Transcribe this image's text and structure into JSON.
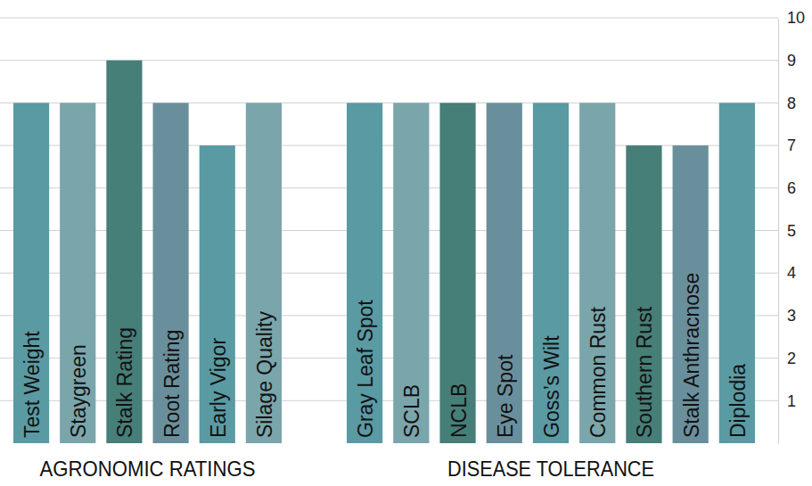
{
  "chart_data": {
    "type": "bar",
    "ylim": [
      0,
      10
    ],
    "yticks": [
      1,
      2,
      3,
      4,
      5,
      6,
      7,
      8,
      9,
      10
    ],
    "grid": true,
    "groups": [
      {
        "name": "AGRONOMIC RATINGS",
        "categories": [
          "Test Weight",
          "Staygreen",
          "Stalk Rating",
          "Root Rating",
          "Early Vigor",
          "Silage Quality"
        ],
        "values": [
          8,
          8,
          9,
          8,
          7,
          8
        ],
        "colors": [
          "#5a9aa3",
          "#7aa5ab",
          "#467e78",
          "#6a8f9c",
          "#5a9aa3",
          "#7aa5ab"
        ]
      },
      {
        "name": "DISEASE TOLERANCE",
        "categories": [
          "Gray Leaf Spot",
          "SCLB",
          "NCLB",
          "Eye Spot",
          "Goss’s Wilt",
          "Common Rust",
          "Southern Rust",
          "Stalk Anthracnose",
          "Diplodia"
        ],
        "values": [
          8,
          8,
          8,
          8,
          8,
          8,
          7,
          7,
          8
        ],
        "colors": [
          "#5a9aa3",
          "#7aa5ab",
          "#467e78",
          "#6a8f9c",
          "#5a9aa3",
          "#7aa5ab",
          "#467e78",
          "#6a8f9c",
          "#5a9aa3"
        ]
      }
    ]
  }
}
